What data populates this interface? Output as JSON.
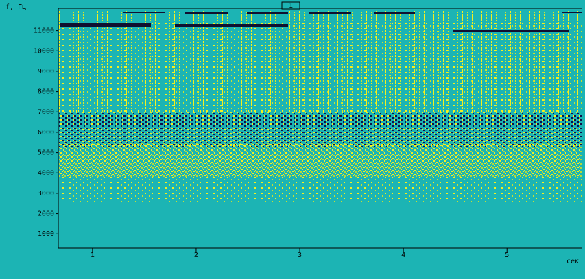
{
  "chart_data": {
    "type": "spectrogram",
    "y_label": "f, Гц",
    "x_label": "сек",
    "marker": "1",
    "ylim": [
      300,
      12100
    ],
    "yticks": [
      1000,
      2000,
      3000,
      4000,
      5000,
      6000,
      7000,
      8000,
      9000,
      10000,
      11000
    ],
    "xlim": [
      0.67,
      5.72
    ],
    "xticks": [
      1,
      2,
      3,
      4,
      5
    ],
    "background": "#1cb4b4"
  }
}
